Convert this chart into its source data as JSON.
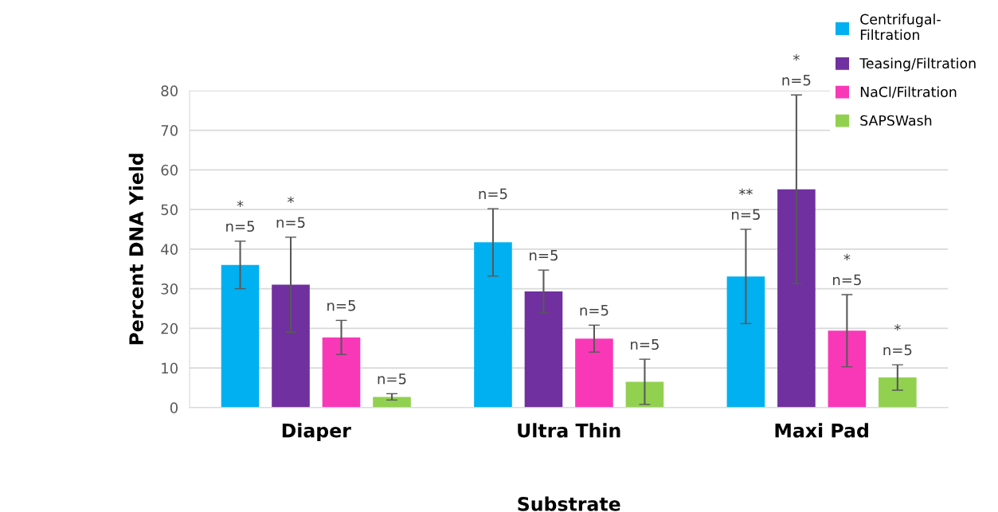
{
  "chart_data": {
    "type": "bar",
    "xlabel": "Substrate",
    "ylabel": "Percent DNA Yield",
    "categories": [
      "Diaper",
      "Ultra Thin",
      "Maxi Pad"
    ],
    "series": [
      {
        "name": "Centrifugal-Filtration",
        "color": "#00b0f0",
        "values": [
          36,
          41.7,
          33.1
        ],
        "errors": [
          6,
          8.5,
          11.9
        ]
      },
      {
        "name": "Teasing/Filtration",
        "color": "#7030a0",
        "values": [
          31,
          29.3,
          55.1
        ],
        "errors": [
          12,
          5.4,
          23.8
        ]
      },
      {
        "name": "NaCl/Filtration",
        "color": "#f938b8",
        "values": [
          17.7,
          17.4,
          19.4
        ],
        "errors": [
          4.3,
          3.4,
          9.1
        ]
      },
      {
        "name": "SAPSWash",
        "color": "#92d050",
        "values": [
          2.7,
          6.5,
          7.6
        ],
        "errors": [
          0.8,
          5.7,
          3.2
        ]
      }
    ],
    "annotations": [
      "*\nn=5",
      "n=5",
      "**\nn=5",
      "*\nn=5",
      "n=5",
      "*\nn=5",
      "n=5",
      "n=5",
      "*\nn=5",
      "n=5",
      "n=5",
      "*\nn=5"
    ],
    "ylim": [
      0,
      80
    ],
    "yticks": [
      0,
      10,
      20,
      30,
      40,
      50,
      60,
      70,
      80
    ],
    "grid": "y",
    "legend": "top right"
  }
}
